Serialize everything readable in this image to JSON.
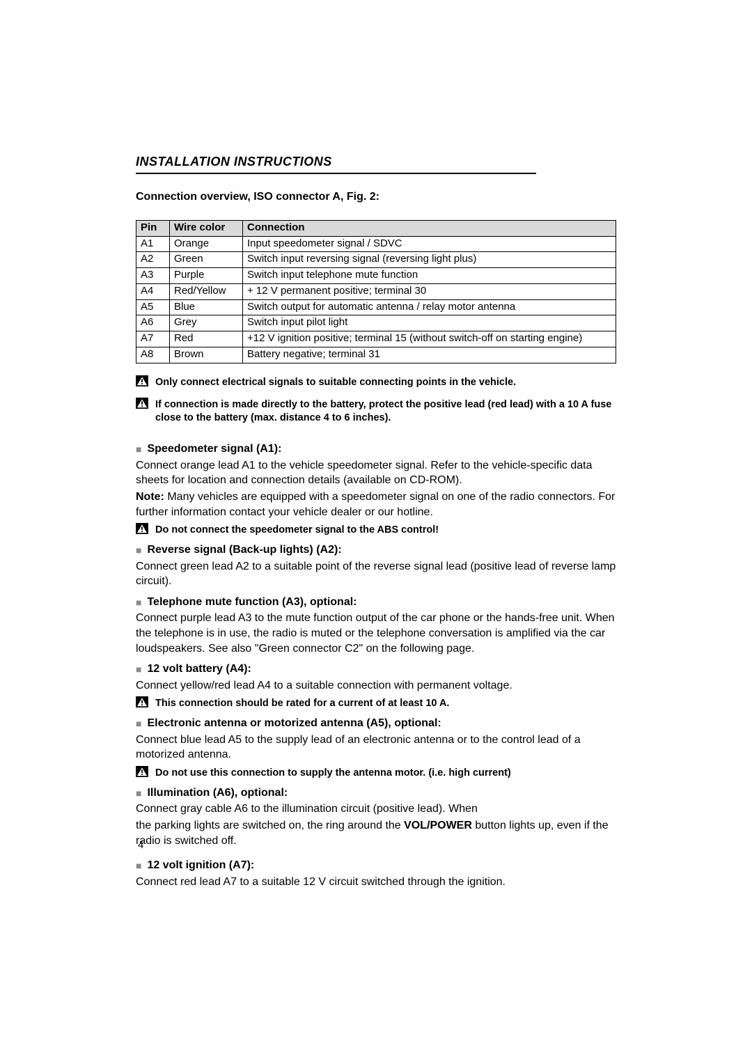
{
  "header": "INSTALLATION INSTRUCTIONS",
  "subheader": "Connection overview, ISO connector A, Fig. 2:",
  "table": {
    "columns": [
      "Pin",
      "Wire color",
      "Connection"
    ],
    "rows": [
      [
        "A1",
        "Orange",
        "Input speedometer signal / SDVC"
      ],
      [
        "A2",
        "Green",
        "Switch input reversing signal (reversing light plus)"
      ],
      [
        "A3",
        "Purple",
        "Switch input telephone mute function"
      ],
      [
        "A4",
        "Red/Yellow",
        "+ 12 V permanent positive; terminal 30"
      ],
      [
        "A5",
        "Blue",
        "Switch output for automatic antenna / relay motor antenna"
      ],
      [
        "A6",
        "Grey",
        "Switch input pilot light"
      ],
      [
        "A7",
        "Red",
        "+12 V ignition positive; terminal 15 (without switch-off on starting engine)"
      ],
      [
        "A8",
        "Brown",
        "Battery negative; terminal 31"
      ]
    ]
  },
  "warnings_top": [
    "Only connect electrical signals to suitable connecting points in the vehicle.",
    "If connection is made directly to the battery, protect the positive lead (red lead) with a 10 A fuse close to the battery (max. distance 4 to 6 inches)."
  ],
  "sections": {
    "speedo": {
      "title": "Speedometer signal (A1):",
      "p1": "Connect orange lead A1 to the vehicle speedometer signal. Refer to the vehicle-specific data sheets for location and connection details (available on CD-ROM).",
      "note_lead": "Note:",
      "note_body": " Many vehicles are equipped with a speedometer signal on one of the radio connectors. For further information contact your vehicle dealer or our hotline.",
      "warn": "Do  not  connect  the speedometer signal to the ABS control!"
    },
    "reverse": {
      "title": "Reverse signal (Back-up lights) (A2):",
      "body": "Connect green lead A2 to a suitable point of the reverse signal lead (positive lead of reverse lamp circuit)."
    },
    "mute": {
      "title": "Telephone mute function (A3), optional:",
      "body": "Connect purple lead A3 to the mute function output of the car phone or the hands-free unit. When the telephone is in use, the radio is muted or the telephone conversation is amplified via the car loudspeakers. See also \"Green connector C2\" on the following page."
    },
    "batt": {
      "title": "12 volt battery  (A4):",
      "body": "Connect yellow/red lead A4 to a suitable connection with permanent voltage.",
      "warn": "This connection should be rated for a current of at least 10 A."
    },
    "ant": {
      "title": "Electronic antenna or motorized antenna (A5), optional:",
      "body": "Connect blue lead A5 to the supply lead of an electronic antenna or to the control lead of a motorized antenna.",
      "warn": "Do not use this connection to supply the antenna motor. (i.e. high current)"
    },
    "illum": {
      "title": "Illumination (A6), optional:",
      "b1": "Connect gray cable A6 to the illumination circuit (positive lead). When",
      "b2a": "the  parking lights are switched on, the ring around the ",
      "b2b": "VOL/POWER",
      "b2c": " button lights up, even if the radio is switched off."
    },
    "ign": {
      "title": "12 volt ignition (A7):",
      "body": "Connect red lead A7 to a suitable 12 V circuit switched through the ignition."
    }
  },
  "page_number": "4",
  "style": {
    "colors": {
      "bg": "#ffffff",
      "text": "#000000",
      "th_bg": "#d9d9d9",
      "bullet": "#8a8a8a",
      "border": "#000000"
    },
    "fonts": {
      "body_pt": 16,
      "small_bold_pt": 14.5,
      "header_pt": 18
    }
  }
}
